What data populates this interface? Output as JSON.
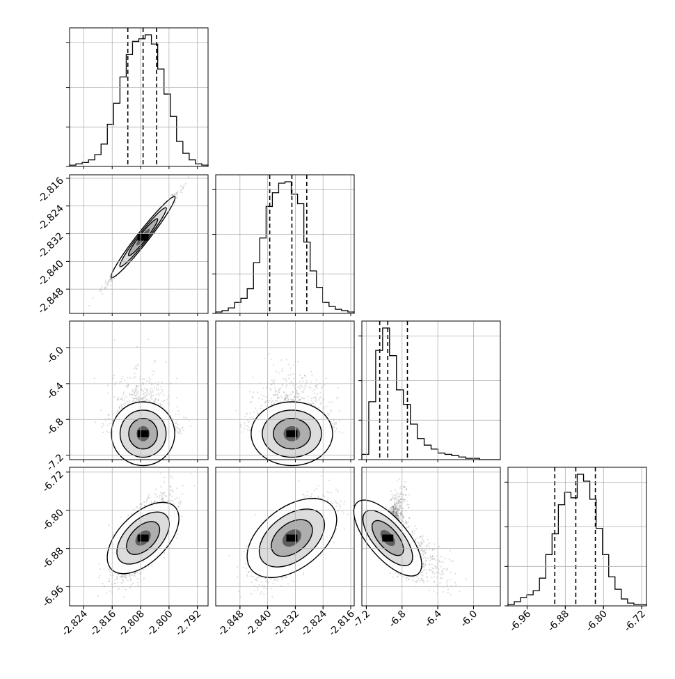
{
  "chart_data": {
    "type": "corner",
    "n_params": 4,
    "grid": true,
    "quantile_lines": "dashed",
    "parameters": [
      {
        "range": [
          -2.828,
          -2.789
        ],
        "ticks": [
          "-2.824",
          "-2.816",
          "-2.808",
          "-2.800",
          "-2.792"
        ],
        "tick_values": [
          -2.824,
          -2.816,
          -2.808,
          -2.8,
          -2.792
        ]
      },
      {
        "range": [
          -2.855,
          -2.815
        ],
        "ticks": [
          "-2.848",
          "-2.840",
          "-2.832",
          "-2.824",
          "-2.816"
        ],
        "tick_values": [
          -2.848,
          -2.84,
          -2.832,
          -2.824,
          -2.816
        ]
      },
      {
        "range": [
          -7.25,
          -5.7
        ],
        "ticks": [
          "-7.2",
          "-6.8",
          "-6.4",
          "-6.0"
        ],
        "tick_values": [
          -7.2,
          -6.8,
          -6.4,
          -6.0
        ]
      },
      {
        "range": [
          -7.0,
          -6.71
        ],
        "ticks": [
          "-6.96",
          "-6.88",
          "-6.80",
          "-6.72"
        ],
        "tick_values": [
          -6.96,
          -6.88,
          -6.8,
          -6.72
        ]
      }
    ],
    "quantiles": [
      [
        -2.8116,
        -2.8073,
        -2.8035
      ],
      [
        -2.8394,
        -2.833,
        -2.8287
      ],
      [
        -7.05,
        -6.96,
        -6.74
      ],
      [
        -6.902,
        -6.858,
        -6.817
      ]
    ],
    "histograms": [
      {
        "param": 0,
        "counts": [
          1,
          2,
          3,
          5,
          9,
          17,
          32,
          48,
          68,
          85,
          95,
          97,
          100,
          93,
          74,
          55,
          38,
          19,
          10,
          5,
          2,
          1
        ]
      },
      {
        "param": 1,
        "counts": [
          1,
          2,
          4,
          8,
          11,
          18,
          37,
          55,
          78,
          88,
          95,
          96,
          87,
          80,
          52,
          31,
          19,
          8,
          5,
          3,
          2,
          1
        ]
      },
      {
        "param": 2,
        "counts": [
          4,
          44,
          83,
          100,
          79,
          53,
          42,
          27,
          16,
          11,
          8,
          5,
          4,
          3,
          2,
          1,
          1,
          0,
          0,
          0
        ]
      },
      {
        "param": 3,
        "counts": [
          1,
          3,
          6,
          8,
          11,
          20,
          37,
          52,
          73,
          82,
          78,
          95,
          90,
          77,
          56,
          37,
          21,
          12,
          5,
          2,
          1,
          1
        ]
      }
    ],
    "correlations": [
      {
        "x": 0,
        "y": 1,
        "rho": 0.99
      },
      {
        "x": 0,
        "y": 2,
        "rho": 0.0
      },
      {
        "x": 1,
        "y": 2,
        "rho": 0.0
      },
      {
        "x": 0,
        "y": 3,
        "rho": 0.7
      },
      {
        "x": 1,
        "y": 3,
        "rho": 0.7
      },
      {
        "x": 2,
        "y": 3,
        "rho": -0.8
      }
    ]
  }
}
